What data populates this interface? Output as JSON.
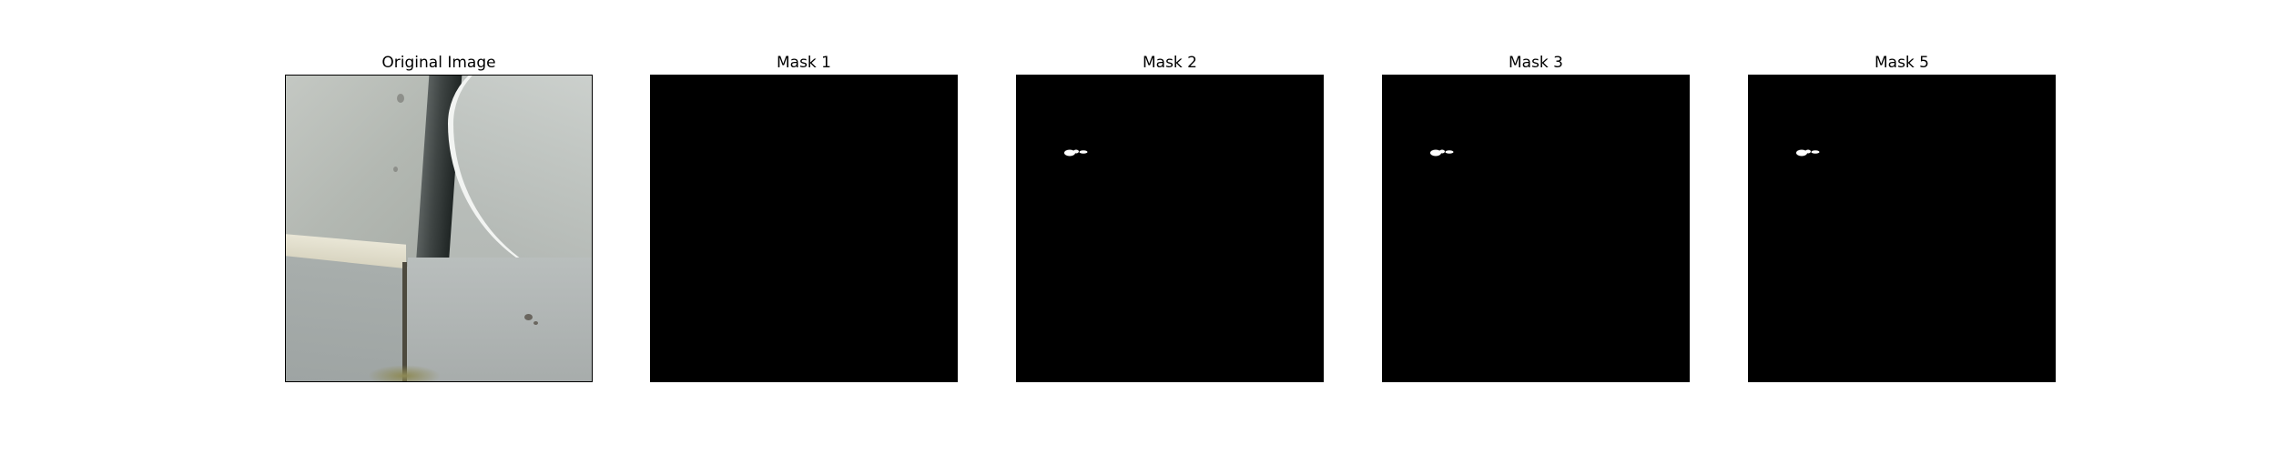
{
  "panels": [
    {
      "title": "Original Image",
      "kind": "photo"
    },
    {
      "title": "Mask 1",
      "kind": "mask",
      "has_blob": false
    },
    {
      "title": "Mask 2",
      "kind": "mask",
      "has_blob": true
    },
    {
      "title": "Mask 3",
      "kind": "mask",
      "has_blob": true
    },
    {
      "title": "Mask 5",
      "kind": "mask",
      "has_blob": true
    }
  ],
  "colors": {
    "mask_background": "#000000",
    "mask_foreground": "#ffffff",
    "page_background": "#ffffff"
  }
}
